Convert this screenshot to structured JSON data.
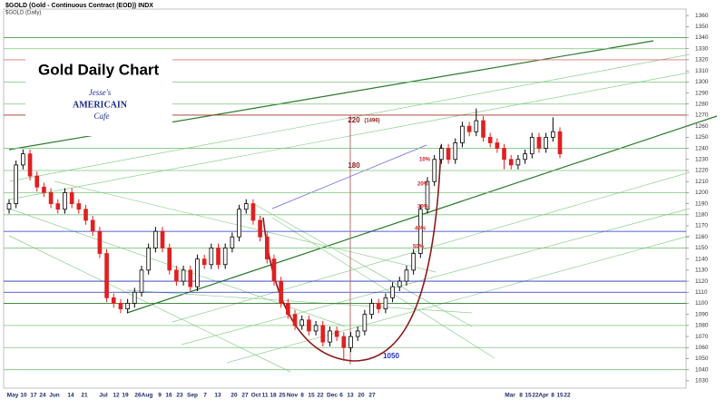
{
  "chart_data": {
    "type": "candlestick",
    "title": "$GOLD (Gold - Continuous Contract (EOD)) INDX",
    "subtitle": "$GOLD (Daily)",
    "overlay_title": "Gold Daily Chart",
    "logo": {
      "line1": "Jesse's",
      "line2": "AMERICAIN",
      "line3": "Cafe"
    },
    "x_labels": [
      "May",
      "10",
      "17",
      "24",
      "Jun",
      "14",
      "21",
      "Jul",
      "12",
      "19",
      "26",
      "Aug",
      "9",
      "16",
      "23",
      "Sep",
      "7",
      "13",
      "20",
      "27",
      "Oct",
      "11",
      "18",
      "25",
      "Nov",
      "8",
      "15",
      "22",
      "Dec",
      "6",
      "13",
      "20",
      "27",
      "Mar",
      "8",
      "15",
      "22",
      "Apr",
      "8",
      "15",
      "22"
    ],
    "open": [
      1185,
      1190,
      1225,
      1235,
      1215,
      1205,
      1200,
      1190,
      1185,
      1200,
      1190,
      1185,
      1175,
      1165,
      1145,
      1105,
      1100,
      1095,
      1100,
      1110,
      1130,
      1150,
      1165,
      1150,
      1130,
      1120,
      1130,
      1115,
      1140,
      1135,
      1150,
      1135,
      1150,
      1160,
      1185,
      1190,
      1175,
      1160,
      1140,
      1120,
      1100,
      1090,
      1080,
      1085,
      1075,
      1080,
      1065,
      1075,
      1070,
      1060,
      1070,
      1075,
      1090,
      1100,
      1095,
      1105,
      1115,
      1120,
      1130,
      1145,
      1185,
      1210,
      1230,
      1240,
      1230,
      1245,
      1260,
      1255,
      1265,
      1250,
      1245,
      1240,
      1230,
      1225,
      1230,
      1235,
      1250,
      1240,
      1250,
      1255
    ],
    "high": [
      1194,
      1229,
      1239,
      1239,
      1219,
      1209,
      1204,
      1194,
      1204,
      1204,
      1194,
      1189,
      1179,
      1169,
      1149,
      1109,
      1104,
      1104,
      1114,
      1134,
      1154,
      1169,
      1169,
      1154,
      1134,
      1134,
      1134,
      1144,
      1144,
      1154,
      1154,
      1154,
      1164,
      1189,
      1194,
      1194,
      1179,
      1164,
      1144,
      1124,
      1104,
      1094,
      1089,
      1089,
      1084,
      1084,
      1079,
      1079,
      1074,
      1074,
      1079,
      1094,
      1104,
      1104,
      1109,
      1119,
      1124,
      1134,
      1149,
      1189,
      1214,
      1234,
      1244,
      1244,
      1249,
      1264,
      1264,
      1276,
      1269,
      1254,
      1249,
      1244,
      1234,
      1234,
      1239,
      1254,
      1254,
      1254,
      1268,
      1259
    ],
    "low": [
      1181,
      1186,
      1221,
      1211,
      1201,
      1196,
      1186,
      1181,
      1181,
      1186,
      1181,
      1171,
      1161,
      1141,
      1101,
      1096,
      1091,
      1091,
      1096,
      1106,
      1126,
      1146,
      1146,
      1126,
      1116,
      1116,
      1111,
      1111,
      1131,
      1131,
      1131,
      1131,
      1146,
      1156,
      1181,
      1171,
      1156,
      1136,
      1116,
      1096,
      1086,
      1076,
      1076,
      1071,
      1071,
      1061,
      1061,
      1066,
      1048,
      1056,
      1066,
      1071,
      1086,
      1091,
      1091,
      1101,
      1111,
      1116,
      1126,
      1141,
      1181,
      1206,
      1226,
      1226,
      1226,
      1241,
      1251,
      1251,
      1246,
      1241,
      1236,
      1221,
      1221,
      1221,
      1226,
      1231,
      1236,
      1236,
      1246,
      1231
    ],
    "close": [
      1190,
      1225,
      1235,
      1215,
      1205,
      1200,
      1190,
      1185,
      1200,
      1190,
      1185,
      1175,
      1165,
      1145,
      1105,
      1100,
      1095,
      1100,
      1110,
      1130,
      1150,
      1165,
      1150,
      1130,
      1120,
      1130,
      1115,
      1140,
      1135,
      1150,
      1135,
      1150,
      1160,
      1185,
      1190,
      1175,
      1160,
      1140,
      1120,
      1100,
      1090,
      1080,
      1085,
      1075,
      1080,
      1065,
      1075,
      1070,
      1060,
      1070,
      1075,
      1090,
      1100,
      1095,
      1105,
      1115,
      1120,
      1130,
      1145,
      1185,
      1210,
      1230,
      1240,
      1230,
      1245,
      1260,
      1255,
      1265,
      1250,
      1245,
      1240,
      1230,
      1225,
      1230,
      1235,
      1250,
      1240,
      1250,
      1255,
      1235
    ],
    "up_color": "#000000",
    "down_color": "#e02020",
    "ylim": [
      1025,
      1365
    ],
    "yticks": [
      1030,
      1040,
      1050,
      1060,
      1070,
      1080,
      1090,
      1100,
      1110,
      1120,
      1130,
      1140,
      1150,
      1160,
      1170,
      1180,
      1190,
      1200,
      1210,
      1220,
      1230,
      1240,
      1250,
      1260,
      1270,
      1280,
      1290,
      1300,
      1310,
      1320,
      1330,
      1340,
      1350,
      1360
    ],
    "levels": [
      {
        "value": 1340,
        "color": "#2e8b2e"
      },
      {
        "value": 1330,
        "color": "#7cc47c"
      },
      {
        "value": 1320,
        "color": "#e07070"
      },
      {
        "value": 1300,
        "color": "#7cc47c"
      },
      {
        "value": 1280,
        "color": "#7cc47c"
      },
      {
        "value": 1270,
        "color": "#a03020"
      },
      {
        "value": 1240,
        "color": "#7cc47c"
      },
      {
        "value": 1220,
        "color": "#7cc47c"
      },
      {
        "value": 1200,
        "color": "#7cc47c"
      },
      {
        "value": 1180,
        "color": "#7cc47c"
      },
      {
        "value": 1165,
        "color": "#2030c0"
      },
      {
        "value": 1150,
        "color": "#7cc47c"
      },
      {
        "value": 1120,
        "color": "#2030c0"
      },
      {
        "value": 1110,
        "color": "#2030c0"
      },
      {
        "value": 1100,
        "color": "#2a7a2a"
      },
      {
        "value": 1080,
        "color": "#7cc47c"
      },
      {
        "value": 1060,
        "color": "#7cc47c"
      },
      {
        "value": 1040,
        "color": "#7cc47c"
      }
    ],
    "annotations": [
      {
        "text": "220",
        "color": "#8b1a1a"
      },
      {
        "text": "(1496)",
        "color": "#8b1a1a"
      },
      {
        "text": "180",
        "color": "#8b1a1a"
      },
      {
        "text": "10%",
        "color": "#d02020"
      },
      {
        "text": "20%",
        "color": "#d02020"
      },
      {
        "text": "30%",
        "color": "#d02020"
      },
      {
        "text": "40%",
        "color": "#d02020"
      },
      {
        "text": "50%",
        "color": "#d02020"
      },
      {
        "text": "1050",
        "color": "#2030c0"
      }
    ]
  }
}
